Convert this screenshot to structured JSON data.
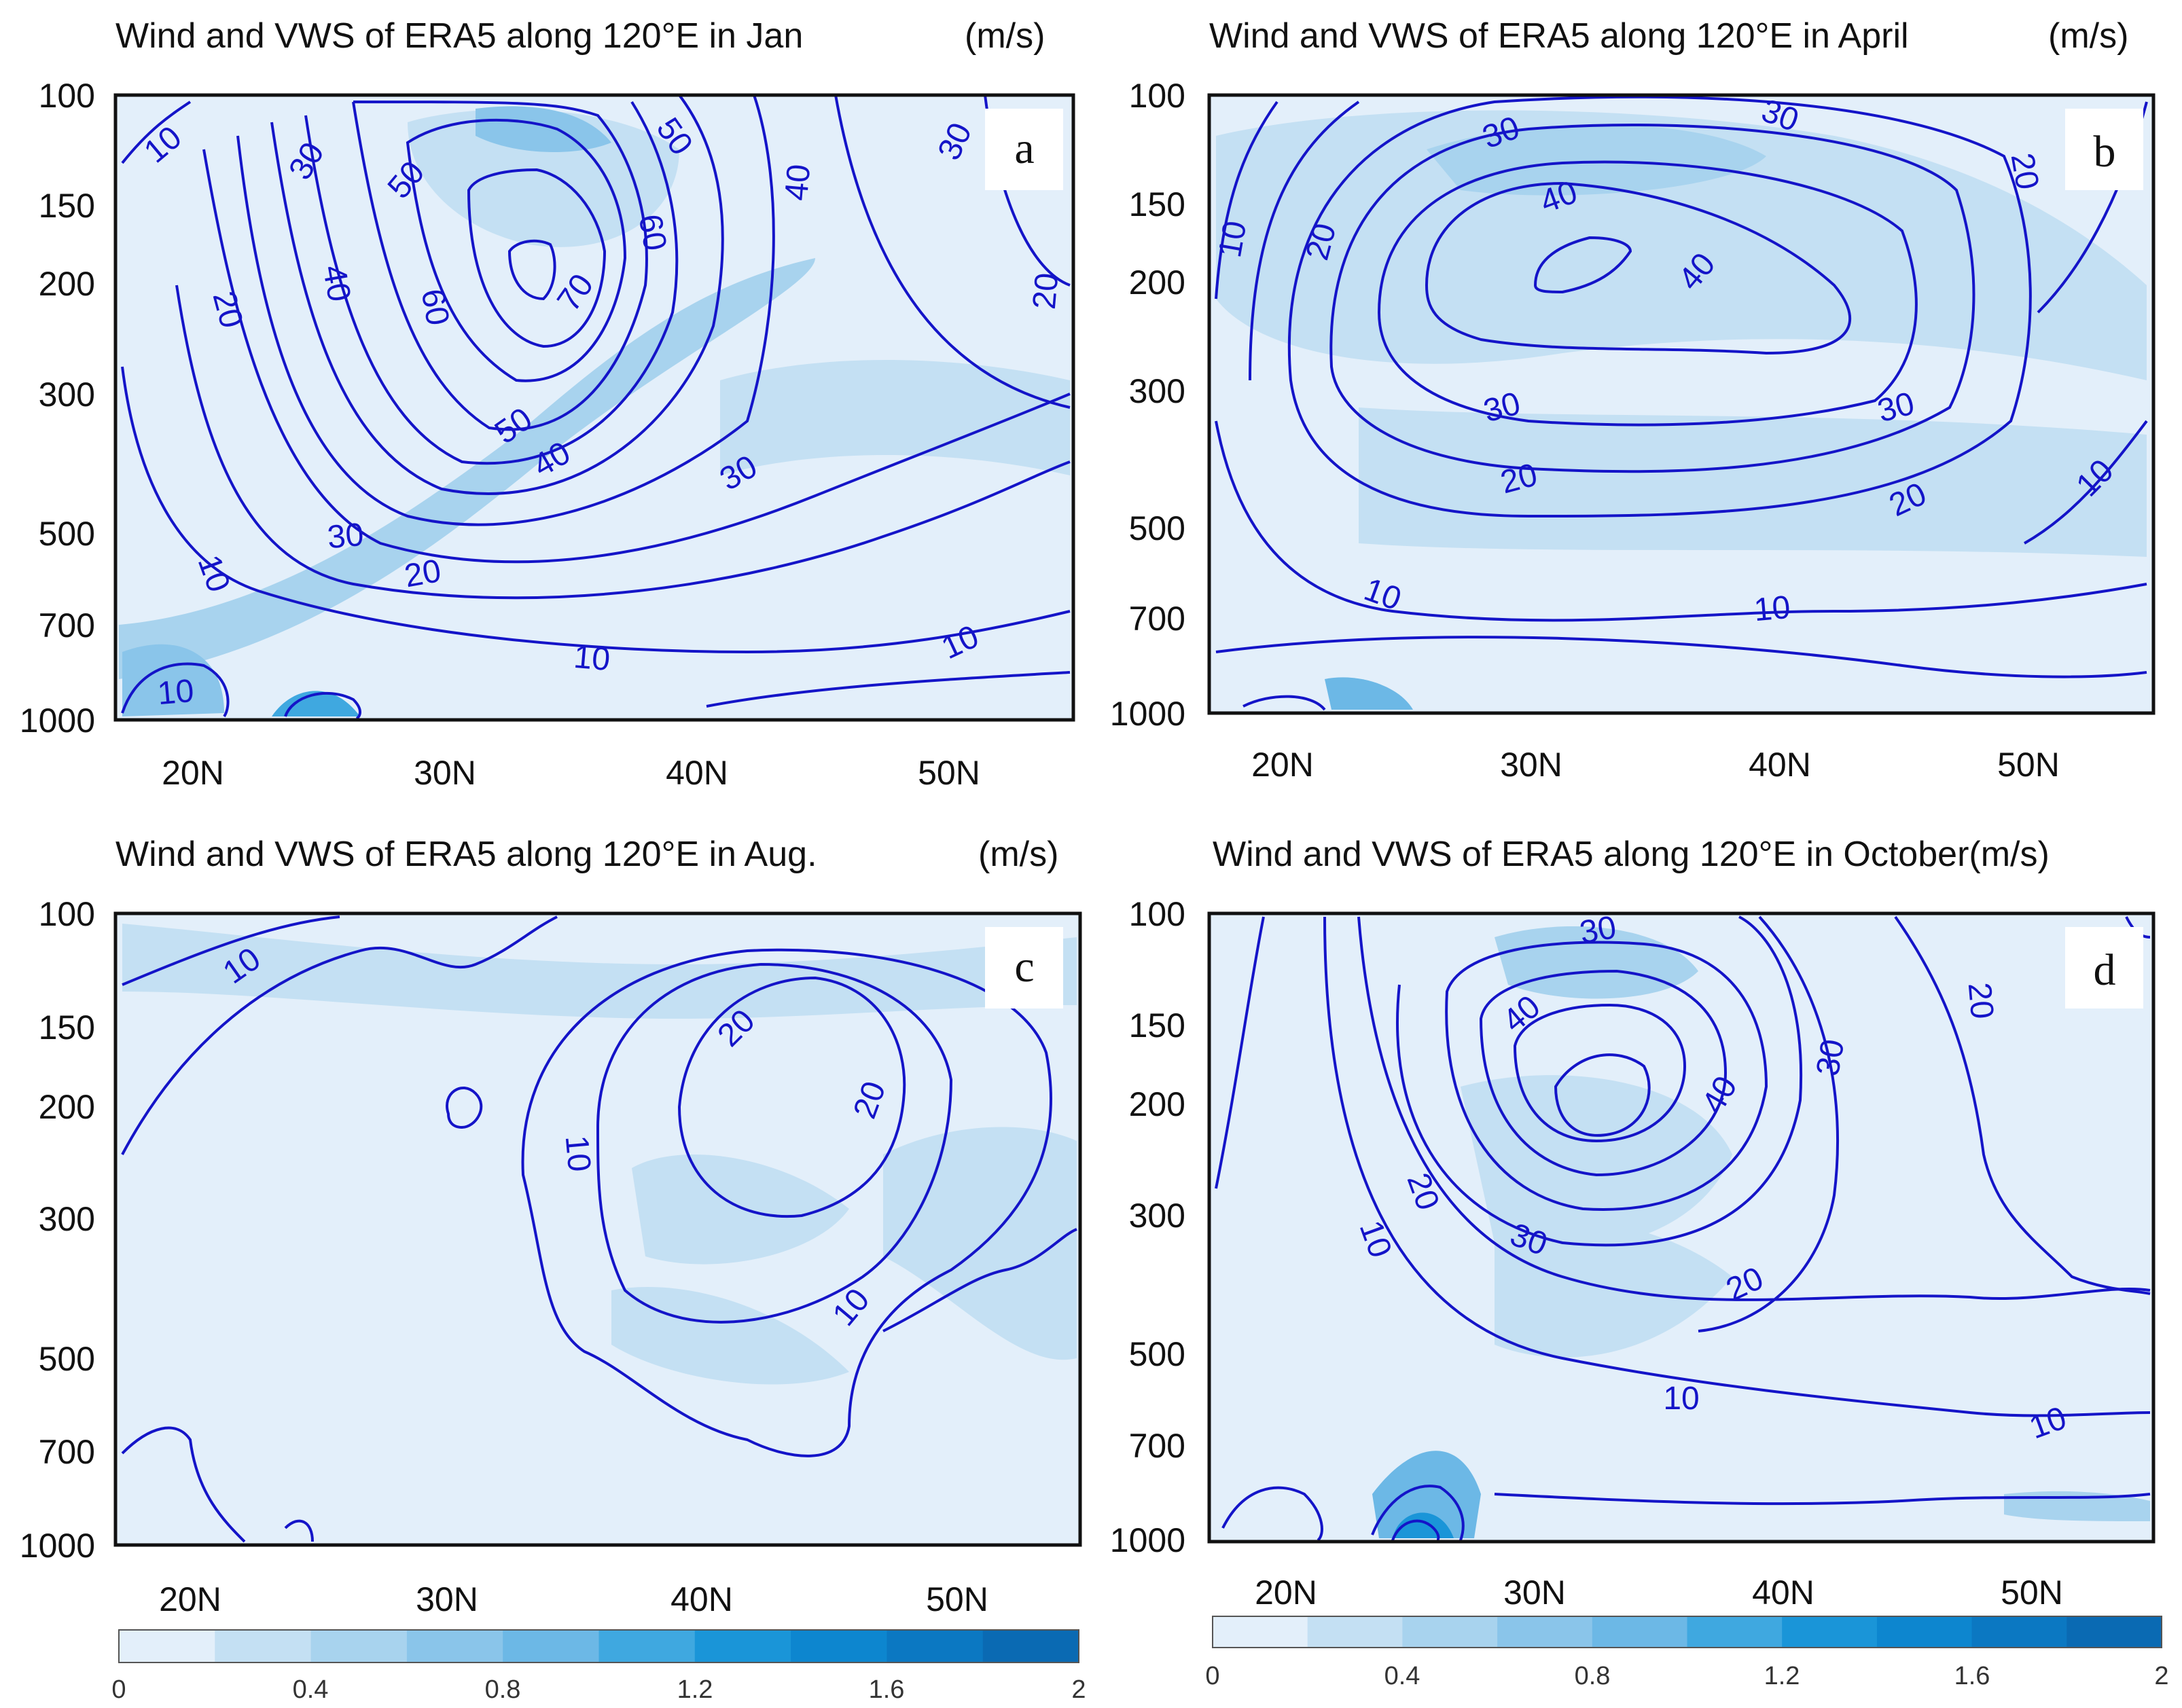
{
  "chart_data": [
    {
      "id": "a",
      "type": "contour",
      "title": "Wind and VWS of ERA5 along 120°E in Jan",
      "unit": "(m/s)",
      "panel_letter": "a",
      "x_ticks": [
        "20N",
        "30N",
        "40N",
        "50N"
      ],
      "y_ticks": [
        "100",
        "150",
        "200",
        "300",
        "500",
        "700",
        "1000"
      ],
      "xlim": [
        17,
        55
      ],
      "ylim": [
        1000,
        100
      ],
      "contour_levels": [
        10,
        20,
        30,
        40,
        50,
        60,
        70
      ],
      "contour_labels": [
        "10",
        "30",
        "50",
        "20",
        "40",
        "60",
        "70",
        "60",
        "50",
        "40",
        "30",
        "10",
        "20",
        "30",
        "50",
        "40",
        "30",
        "20",
        "10",
        "10",
        "10"
      ],
      "jet_core": {
        "lat": 33.5,
        "pressure_hPa": 200,
        "max_wind": 70
      }
    },
    {
      "id": "b",
      "type": "contour",
      "title": "Wind and VWS of ERA5 along 120°E in April",
      "unit": "(m/s)",
      "panel_letter": "b",
      "x_ticks": [
        "20N",
        "30N",
        "40N",
        "50N"
      ],
      "y_ticks": [
        "100",
        "150",
        "200",
        "300",
        "500",
        "700",
        "1000"
      ],
      "xlim": [
        17,
        55
      ],
      "ylim": [
        1000,
        100
      ],
      "contour_levels": [
        10,
        20,
        30,
        40
      ],
      "contour_labels": [
        "30",
        "30",
        "20",
        "10",
        "20",
        "40",
        "40",
        "30",
        "30",
        "20",
        "20",
        "10",
        "10",
        "10"
      ],
      "jet_core": {
        "lat": 32,
        "pressure_hPa": 200,
        "max_wind": 40
      }
    },
    {
      "id": "c",
      "type": "contour",
      "title": "Wind and VWS of ERA5 along 120°E in Aug.",
      "unit": "(m/s)",
      "panel_letter": "c",
      "x_ticks": [
        "20N",
        "30N",
        "40N",
        "50N"
      ],
      "y_ticks": [
        "100",
        "150",
        "200",
        "300",
        "500",
        "700",
        "1000"
      ],
      "xlim": [
        17,
        55
      ],
      "ylim": [
        1000,
        100
      ],
      "contour_levels": [
        10,
        20
      ],
      "contour_labels": [
        "10",
        "20",
        "20",
        "10",
        "10"
      ],
      "jet_core": {
        "lat": 43,
        "pressure_hPa": 200,
        "max_wind": 20
      }
    },
    {
      "id": "d",
      "type": "contour",
      "title": "Wind and VWS of ERA5 along 120°E in October(m/s)",
      "unit": "",
      "panel_letter": "d",
      "x_ticks": [
        "20N",
        "30N",
        "40N",
        "50N"
      ],
      "y_ticks": [
        "100",
        "150",
        "200",
        "300",
        "500",
        "700",
        "1000"
      ],
      "xlim": [
        17,
        55
      ],
      "ylim": [
        1000,
        100
      ],
      "contour_levels": [
        10,
        20,
        30,
        40
      ],
      "contour_labels": [
        "30",
        "20",
        "40",
        "30",
        "40",
        "20",
        "10",
        "30",
        "20",
        "10",
        "10"
      ],
      "jet_core": {
        "lat": 33,
        "pressure_hPa": 200,
        "max_wind": 40
      }
    }
  ],
  "colorbars": [
    {
      "ticks": [
        "0",
        "0.4",
        "0.8",
        "1.2",
        "1.6",
        "2"
      ],
      "range": [
        0,
        2
      ],
      "steps": 10
    },
    {
      "ticks": [
        "0",
        "0.4",
        "0.8",
        "1.2",
        "1.6",
        "2"
      ],
      "range": [
        0,
        2
      ],
      "steps": 10
    }
  ],
  "colors": {
    "contour": "#1414c8",
    "fill_levels": [
      "#e3effa",
      "#c4e0f3",
      "#a8d3ee",
      "#8ac5ea",
      "#6cb8e6",
      "#3fa8e0",
      "#1a95d8",
      "#0d86cf",
      "#0b78c2",
      "#0a6ab3"
    ]
  }
}
